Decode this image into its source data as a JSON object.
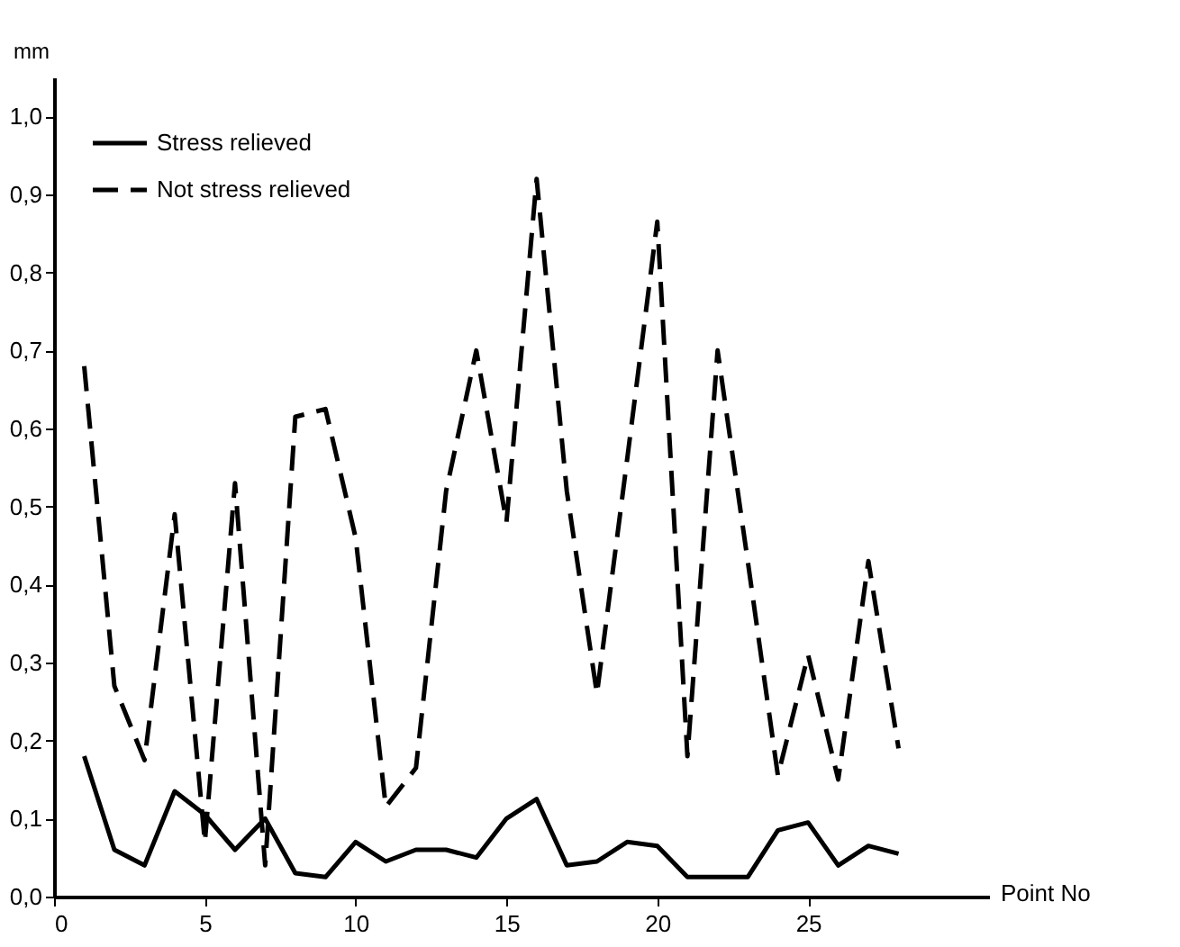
{
  "chart_data": {
    "type": "line",
    "xlabel": "Point No",
    "ylabel": "mm",
    "x": [
      1,
      2,
      3,
      4,
      5,
      6,
      7,
      8,
      9,
      10,
      11,
      12,
      13,
      14,
      15,
      16,
      17,
      18,
      19,
      20,
      21,
      22,
      23,
      24,
      25,
      26,
      27,
      28
    ],
    "series": [
      {
        "name": "Stress relieved",
        "color": "#000000",
        "line_style": "solid",
        "values": [
          0.18,
          0.06,
          0.04,
          0.135,
          0.105,
          0.06,
          0.1,
          0.03,
          0.025,
          0.07,
          0.045,
          0.06,
          0.06,
          0.05,
          0.1,
          0.125,
          0.04,
          0.045,
          0.07,
          0.065,
          0.025,
          0.025,
          0.025,
          0.085,
          0.095,
          0.04,
          0.065,
          0.055
        ]
      },
      {
        "name": "Not stress relieved",
        "color": "#000000",
        "line_style": "dashed",
        "values": [
          0.68,
          0.27,
          0.175,
          0.49,
          0.07,
          0.53,
          0.04,
          0.615,
          0.625,
          0.46,
          0.115,
          0.165,
          0.52,
          0.7,
          0.48,
          0.92,
          0.52,
          0.26,
          0.56,
          0.865,
          0.18,
          0.7,
          0.43,
          0.155,
          0.31,
          0.15,
          0.43,
          0.19
        ]
      }
    ],
    "xlim": [
      0,
      31
    ],
    "xticks": [
      0,
      5,
      10,
      15,
      20,
      25
    ],
    "ylim": [
      0,
      1.05
    ],
    "yticks": [
      {
        "value": 0,
        "label": "0,0"
      },
      {
        "value": 0.1,
        "label": "0,1"
      },
      {
        "value": 0.2,
        "label": "0,2"
      },
      {
        "value": 0.3,
        "label": "0,3"
      },
      {
        "value": 0.4,
        "label": "0,4"
      },
      {
        "value": 0.5,
        "label": "0,5"
      },
      {
        "value": 0.6,
        "label": "0,6"
      },
      {
        "value": 0.7,
        "label": "0,7"
      },
      {
        "value": 0.8,
        "label": "0,8"
      },
      {
        "value": 0.9,
        "label": "0,9"
      },
      {
        "value": 1.0,
        "label": "1,0"
      }
    ],
    "legend": "top left",
    "grid": false,
    "marker": "none"
  }
}
